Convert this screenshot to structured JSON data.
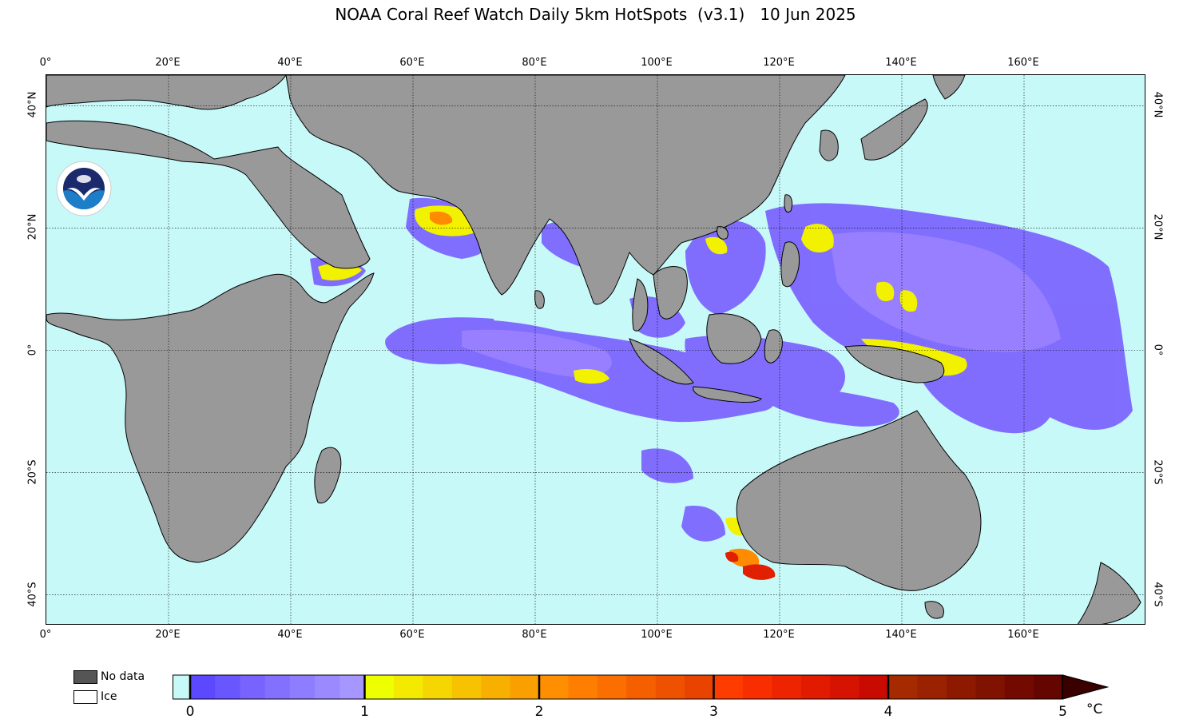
{
  "title": "NOAA Coral Reef Watch Daily 5km HotSpots  (v3.1)   10 Jun 2025",
  "map": {
    "lon_range": [
      0,
      180
    ],
    "lat_range": [
      -45,
      45
    ],
    "grid": true,
    "lon_ticks": [
      {
        "value": 0,
        "label": "0°"
      },
      {
        "value": 20,
        "label": "20°E"
      },
      {
        "value": 40,
        "label": "40°E"
      },
      {
        "value": 60,
        "label": "60°E"
      },
      {
        "value": 80,
        "label": "80°E"
      },
      {
        "value": 100,
        "label": "100°E"
      },
      {
        "value": 120,
        "label": "120°E"
      },
      {
        "value": 140,
        "label": "140°E"
      },
      {
        "value": 160,
        "label": "160°E"
      }
    ],
    "lat_ticks_left": [
      {
        "value": 40,
        "label": "40°N"
      },
      {
        "value": 20,
        "label": "20°N"
      },
      {
        "value": 0,
        "label": "0°"
      },
      {
        "value": -20,
        "label": "20°S"
      },
      {
        "value": -40,
        "label": "40°S"
      }
    ],
    "lat_ticks_right": [
      {
        "value": 40,
        "label": "40°N"
      },
      {
        "value": 20,
        "label": "20°N"
      },
      {
        "value": 0,
        "label": "0°"
      },
      {
        "value": -20,
        "label": "20°S"
      },
      {
        "value": -40,
        "label": "40°S"
      }
    ],
    "colors": {
      "ocean": "#c8f9f9",
      "land": "#999999",
      "hotspot_low": "#7a62ff",
      "hotspot_mid": "#9b82ff",
      "hotspot_1": "#f2f200",
      "hotspot_2": "#ff8c00",
      "hotspot_3": "#e02000"
    },
    "logo": "noaa-logo"
  },
  "legend": {
    "nodata_label": "No data",
    "nodata_color": "#555555",
    "ice_label": "Ice",
    "ice_color": "#ffffff"
  },
  "colorbar": {
    "min": 0,
    "max": 5,
    "ticks": [
      "0",
      "1",
      "2",
      "3",
      "4",
      "5"
    ],
    "unit": "°C",
    "segments": [
      [
        "#5b48ff",
        "#6a56ff",
        "#7863ff",
        "#8470ff",
        "#8f7dff",
        "#9b8aff",
        "#a597ff"
      ],
      [
        "#eeff00",
        "#f4ea00",
        "#f6d600",
        "#f7c200",
        "#f8b000",
        "#f9a000"
      ],
      [
        "#ff8e00",
        "#ff7e00",
        "#fb6e00",
        "#f55f00",
        "#ee5200",
        "#e84400"
      ],
      [
        "#ff3c00",
        "#f82e00",
        "#ee2400",
        "#e21a00",
        "#d61200",
        "#c80a00"
      ],
      [
        "#a52a00",
        "#9a2200",
        "#8d1a00",
        "#801200",
        "#720a00",
        "#650500"
      ]
    ],
    "extend_color": "#3a0000",
    "below_color": "#c8f9f9"
  }
}
